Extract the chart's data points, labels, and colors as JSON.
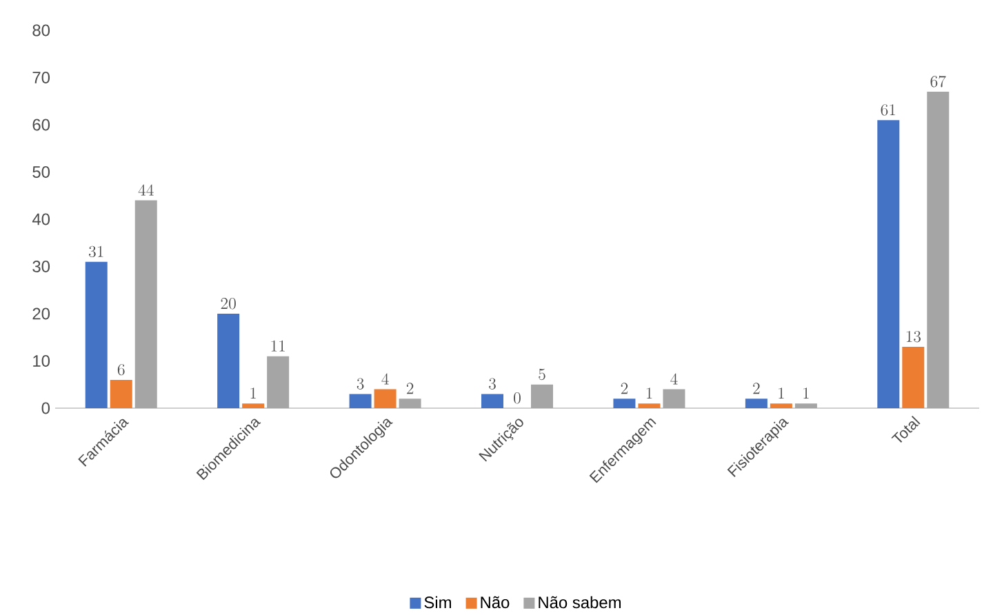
{
  "chart_data": {
    "type": "bar",
    "categories": [
      "Farmácia",
      "Biomedicina",
      "Odontologia",
      "Nutrição",
      "Enfermagem",
      "Fisioterapia",
      "Total"
    ],
    "series": [
      {
        "name": "Sim",
        "color": "#4472c4",
        "values": [
          31,
          20,
          3,
          3,
          2,
          2,
          61
        ]
      },
      {
        "name": "Não",
        "color": "#ed7d31",
        "values": [
          6,
          1,
          4,
          0,
          1,
          1,
          13
        ]
      },
      {
        "name": "Não sabem",
        "color": "#a5a5a5",
        "values": [
          44,
          11,
          2,
          5,
          4,
          1,
          67
        ]
      }
    ],
    "ylim": [
      0,
      80
    ],
    "yticks": [
      0,
      10,
      20,
      30,
      40,
      50,
      60,
      70,
      80
    ],
    "data_labels": true,
    "legend": "bottom"
  }
}
